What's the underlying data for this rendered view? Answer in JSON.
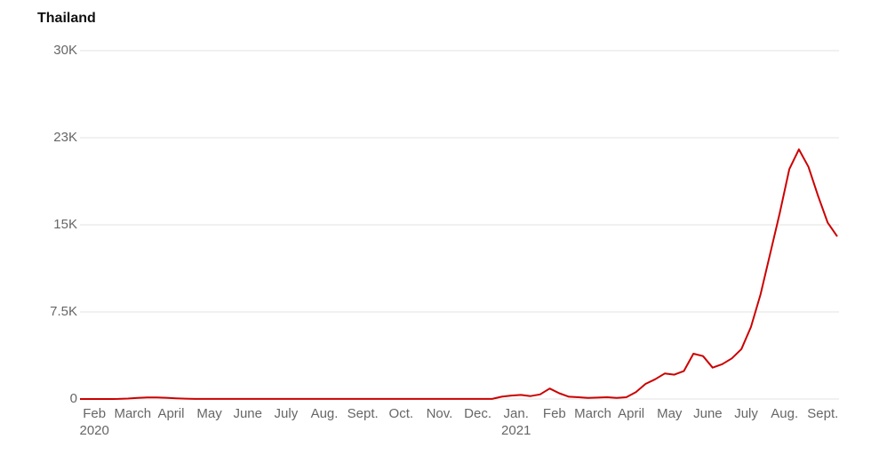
{
  "chart_data": {
    "type": "line",
    "title": "Thailand",
    "categories": [
      "Feb",
      null,
      null,
      null,
      "March",
      null,
      null,
      null,
      "April",
      null,
      null,
      null,
      "May",
      null,
      null,
      null,
      "June",
      null,
      null,
      null,
      "July",
      null,
      null,
      null,
      "Aug.",
      null,
      null,
      null,
      "Sept.",
      null,
      null,
      null,
      "Oct.",
      null,
      null,
      null,
      "Nov.",
      null,
      null,
      null,
      "Dec.",
      null,
      null,
      null,
      "Jan.",
      null,
      null,
      null,
      "Feb",
      null,
      null,
      null,
      "March",
      null,
      null,
      null,
      "April",
      null,
      null,
      null,
      "May",
      null,
      null,
      null,
      "June",
      null,
      null,
      null,
      "July",
      null,
      null,
      null,
      "Aug.",
      null,
      null,
      null,
      "Sept.",
      null,
      null,
      null
    ],
    "category_years": [
      "2020",
      null,
      null,
      null,
      null,
      null,
      null,
      null,
      null,
      null,
      null,
      null,
      null,
      null,
      null,
      null,
      null,
      null,
      null,
      null,
      null,
      null,
      null,
      null,
      null,
      null,
      null,
      null,
      null,
      null,
      null,
      null,
      null,
      null,
      null,
      null,
      null,
      null,
      null,
      null,
      null,
      null,
      null,
      null,
      "2021",
      null,
      null,
      null,
      null,
      null,
      null,
      null,
      null,
      null,
      null,
      null,
      null,
      null,
      null,
      null,
      null,
      null,
      null,
      null,
      null,
      null,
      null,
      null,
      null,
      null,
      null,
      null,
      null,
      null,
      null,
      null,
      null,
      null,
      null,
      null
    ],
    "values": [
      0,
      0,
      0,
      2,
      10,
      40,
      90,
      130,
      140,
      110,
      60,
      30,
      10,
      5,
      5,
      5,
      5,
      5,
      5,
      5,
      5,
      5,
      5,
      5,
      5,
      5,
      5,
      5,
      5,
      5,
      5,
      5,
      5,
      5,
      5,
      5,
      5,
      5,
      5,
      5,
      5,
      5,
      5,
      10,
      200,
      300,
      350,
      250,
      400,
      900,
      500,
      200,
      150,
      100,
      120,
      150,
      100,
      150,
      600,
      1300,
      1700,
      2200,
      2100,
      2400,
      3900,
      3700,
      2700,
      3000,
      3500,
      4300,
      6200,
      9000,
      12500,
      16000,
      19800,
      21500,
      20000,
      17500,
      15200,
      14000
    ],
    "color": "#cc0000",
    "ylim": [
      0,
      30000
    ],
    "yticks": [
      0,
      {
        "value": 7500,
        "label": "7.5K"
      },
      {
        "value": 15000,
        "label": "15K"
      },
      {
        "value": 22500,
        "label": "23K"
      },
      {
        "value": 30000,
        "label": "30K"
      }
    ],
    "grid": true
  }
}
